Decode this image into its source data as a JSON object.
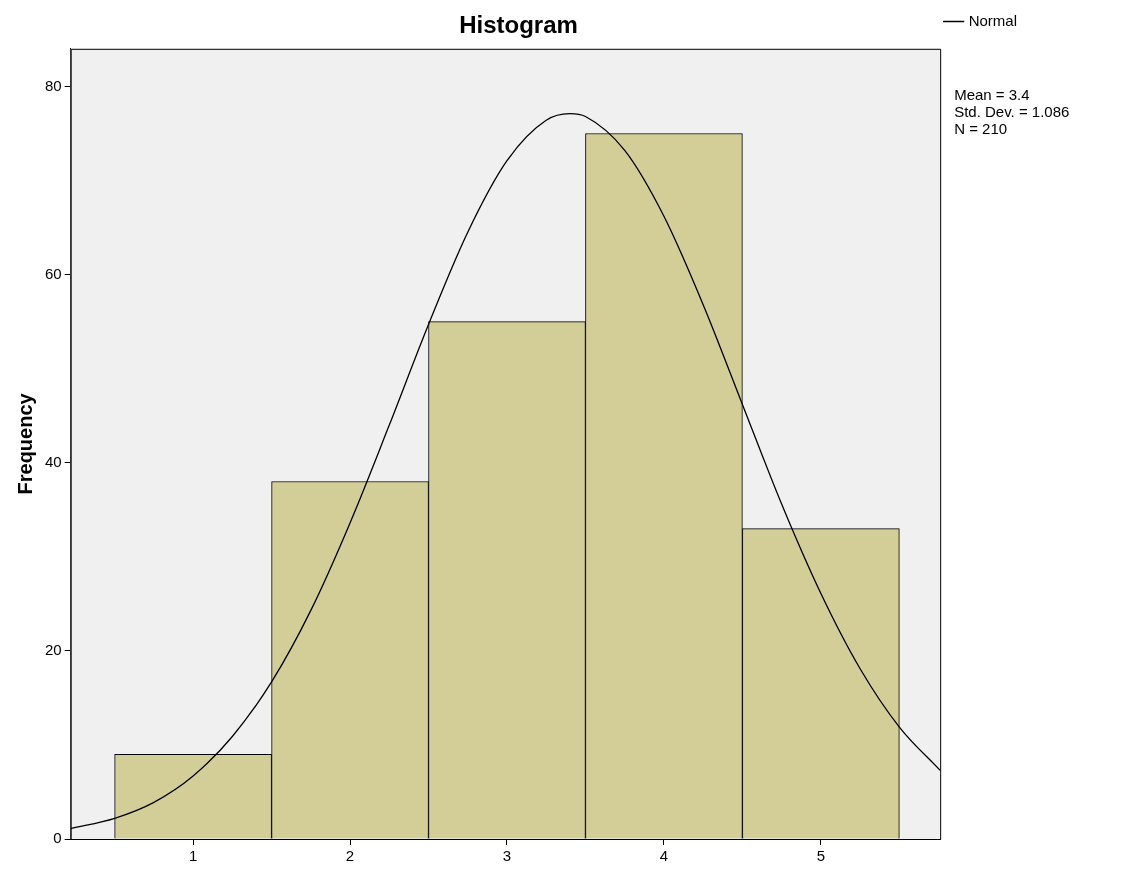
{
  "chart_data": {
    "type": "histogram",
    "title": "Histogram",
    "ylabel": "Frequency",
    "bins": [
      0.5,
      1.5,
      2.5,
      3.5,
      4.5,
      5.5
    ],
    "series": [
      {
        "color": "#d3ce98",
        "values": [
          9,
          38,
          55,
          75,
          33
        ]
      },
      {
        "type": "line",
        "name": "Normal",
        "color": "#000000",
        "x": [
          0.22,
          0.5,
          0.75,
          1,
          1.25,
          1.5,
          1.75,
          2,
          2.25,
          2.5,
          2.75,
          3,
          3.25,
          3.4,
          3.5,
          3.75,
          4,
          4.25,
          4.5,
          4.75,
          5,
          5.25,
          5.5,
          5.76
        ],
        "values": [
          1.1,
          2.2,
          3.9,
          6.7,
          10.9,
          16.7,
          24.3,
          33.6,
          44,
          54.7,
          64.5,
          72.1,
          76.4,
          77.1,
          76.8,
          73.2,
          66.2,
          56.8,
          46.2,
          35.6,
          26.1,
          18.1,
          11.9,
          7.3
        ]
      }
    ],
    "xlim": [
      0.22,
      5.76
    ],
    "xticks": [
      1,
      2,
      3,
      4,
      5
    ],
    "ylim": [
      0,
      84
    ],
    "yticks": [
      0,
      20,
      40,
      60,
      80
    ],
    "grid": false,
    "legend": "top right",
    "marker": "none",
    "line_style": "solid",
    "annotations": [
      "Mean = 3.4",
      "Std. Dev. = 1.086",
      "N = 210"
    ]
  }
}
